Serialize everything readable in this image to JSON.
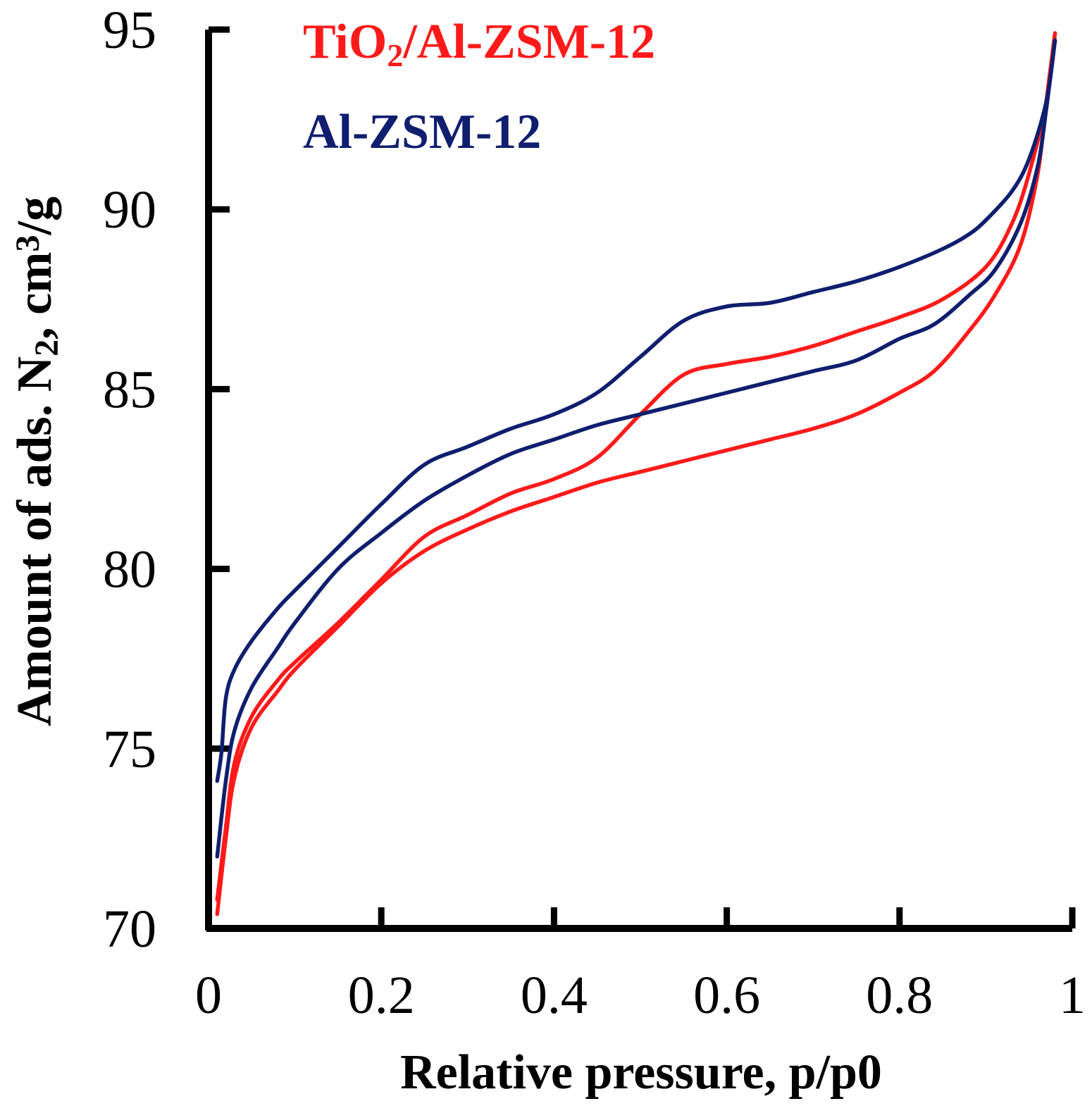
{
  "chart_data": {
    "type": "line",
    "title": "",
    "xlabel": "Relative pressure, p/p0",
    "ylabel": {
      "prefix": "Amount of ads. N",
      "sub": "2",
      "mid": ", cm",
      "sup": "3",
      "suffix": "/g"
    },
    "xlim": [
      0,
      1
    ],
    "ylim": [
      70,
      95
    ],
    "xticks": [
      0,
      0.2,
      0.4,
      0.6,
      0.8,
      1
    ],
    "xtick_labels": [
      "0",
      "0.2",
      "0.4",
      "0.6",
      "0.8",
      "1"
    ],
    "yticks": [
      70,
      75,
      80,
      85,
      90,
      95
    ],
    "ytick_labels": [
      "70",
      "75",
      "80",
      "85",
      "90",
      "95"
    ],
    "grid": false,
    "legend_position": "top-left",
    "series": [
      {
        "name": "TiO2/Al-ZSM-12",
        "legend": {
          "prefix": "TiO",
          "sub": "2",
          "suffix": "/Al-ZSM-12"
        },
        "color": "#ff1a1a",
        "branches": [
          {
            "x": [
              0.01,
              0.02,
              0.03,
              0.05,
              0.08,
              0.1,
              0.15,
              0.2,
              0.25,
              0.3,
              0.35,
              0.4,
              0.45,
              0.5,
              0.55,
              0.6,
              0.65,
              0.7,
              0.75,
              0.8,
              0.84,
              0.88,
              0.91,
              0.94,
              0.96,
              0.97,
              0.98
            ],
            "y": [
              70.4,
              72.5,
              74.2,
              75.6,
              76.6,
              77.2,
              78.4,
              79.6,
              80.5,
              81.1,
              81.6,
              82.0,
              82.4,
              82.7,
              83.0,
              83.3,
              83.6,
              83.9,
              84.3,
              84.9,
              85.5,
              86.6,
              87.6,
              89.0,
              91.0,
              93.0,
              94.9
            ]
          },
          {
            "x": [
              0.01,
              0.02,
              0.03,
              0.05,
              0.08,
              0.1,
              0.15,
              0.2,
              0.25,
              0.3,
              0.35,
              0.4,
              0.45,
              0.5,
              0.55,
              0.6,
              0.65,
              0.7,
              0.75,
              0.8,
              0.85,
              0.9,
              0.93,
              0.95,
              0.97,
              0.98
            ],
            "y": [
              70.8,
              72.8,
              74.6,
              75.9,
              76.9,
              77.4,
              78.5,
              79.7,
              80.9,
              81.5,
              82.1,
              82.5,
              83.1,
              84.3,
              85.4,
              85.7,
              85.9,
              86.2,
              86.6,
              87.0,
              87.5,
              88.4,
              89.6,
              91.0,
              93.0,
              94.9
            ]
          }
        ]
      },
      {
        "name": "Al-ZSM-12",
        "legend": {
          "prefix": "Al-ZSM-12",
          "sub": "",
          "suffix": ""
        },
        "color": "#0f1e6e",
        "branches": [
          {
            "x": [
              0.01,
              0.015,
              0.02,
              0.03,
              0.05,
              0.08,
              0.1,
              0.15,
              0.2,
              0.25,
              0.3,
              0.35,
              0.4,
              0.45,
              0.5,
              0.55,
              0.6,
              0.65,
              0.7,
              0.75,
              0.8,
              0.85,
              0.88,
              0.9,
              0.93,
              0.95,
              0.97,
              0.98
            ],
            "y": [
              74.1,
              74.9,
              76.4,
              77.2,
              78.0,
              78.9,
              79.4,
              80.6,
              81.8,
              82.9,
              83.4,
              83.9,
              84.3,
              84.9,
              85.9,
              86.9,
              87.3,
              87.4,
              87.7,
              88.0,
              88.4,
              88.9,
              89.3,
              89.7,
              90.5,
              91.4,
              93.0,
              94.7
            ]
          },
          {
            "x": [
              0.01,
              0.02,
              0.03,
              0.05,
              0.08,
              0.1,
              0.15,
              0.2,
              0.25,
              0.3,
              0.35,
              0.4,
              0.45,
              0.5,
              0.55,
              0.6,
              0.65,
              0.7,
              0.75,
              0.8,
              0.84,
              0.88,
              0.91,
              0.94,
              0.96,
              0.97,
              0.98
            ],
            "y": [
              72.0,
              74.1,
              75.5,
              76.7,
              77.8,
              78.5,
              80.0,
              81.0,
              81.9,
              82.6,
              83.2,
              83.6,
              84.0,
              84.3,
              84.6,
              84.9,
              85.2,
              85.5,
              85.8,
              86.4,
              86.8,
              87.6,
              88.3,
              89.6,
              91.2,
              92.8,
              94.7
            ]
          }
        ]
      }
    ]
  }
}
